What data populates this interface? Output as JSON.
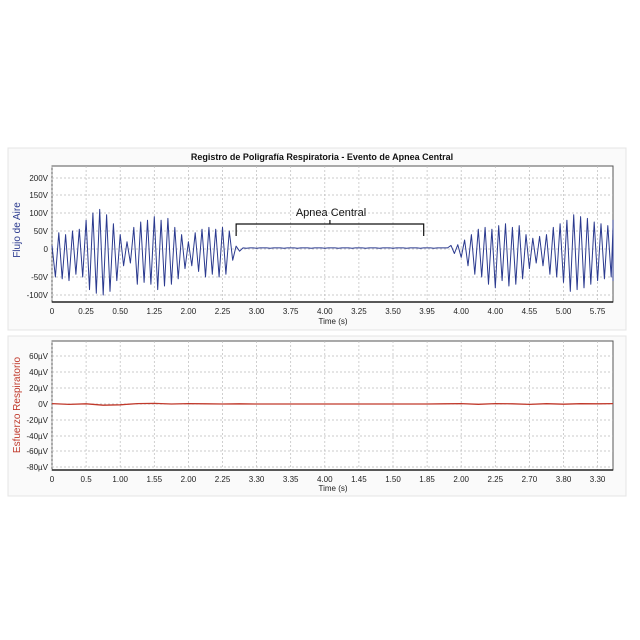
{
  "chart_data": [
    {
      "type": "line",
      "title": "Registro de Poligrafía Respiratoria - Evento de Apnea Central",
      "xlabel": "Time (s)",
      "ylabel": "Flujo de Aire",
      "x_tick_labels": [
        "0",
        "0.25",
        "0.50",
        "1.25",
        "2.00",
        "2.25",
        "3.00",
        "3.75",
        "4.00",
        "3.25",
        "3.50",
        "3.95",
        "4.00",
        "4.00",
        "4.55",
        "5.00",
        "5.75"
      ],
      "y_tick_labels": [
        "200V",
        "150V",
        "100V",
        "50V",
        "0",
        "-50V",
        "-100V"
      ],
      "y_tick_values": [
        200,
        150,
        100,
        50,
        0,
        -50,
        -100
      ],
      "grid": true,
      "color": "#2b3a8f",
      "annotation": "Apnea Central",
      "annotation_span_ticks": [
        5.4,
        10.9
      ],
      "x_step_ticks": 0.1,
      "values": [
        10,
        -50,
        45,
        -55,
        40,
        -60,
        50,
        -45,
        55,
        -50,
        80,
        -85,
        100,
        -95,
        110,
        -100,
        95,
        -90,
        70,
        -60,
        40,
        -30,
        20,
        -25,
        60,
        -70,
        75,
        -65,
        80,
        -70,
        90,
        -85,
        80,
        -75,
        85,
        -70,
        60,
        -55,
        40,
        -35,
        20,
        -30,
        45,
        -40,
        55,
        -50,
        60,
        -45,
        55,
        -50,
        60,
        -45,
        50,
        -20,
        8,
        -4,
        3,
        2,
        3,
        3,
        2,
        3,
        3,
        3,
        2,
        3,
        3,
        3,
        2,
        3,
        3,
        3,
        2,
        3,
        3,
        3,
        2,
        3,
        3,
        3,
        2,
        3,
        3,
        3,
        2,
        3,
        3,
        3,
        2,
        3,
        3,
        3,
        2,
        3,
        3,
        3,
        2,
        3,
        3,
        3,
        2,
        3,
        3,
        3,
        2,
        3,
        3,
        3,
        2,
        3,
        3,
        3,
        2,
        3,
        3,
        3,
        3,
        10,
        -8,
        12,
        -15,
        25,
        -30,
        40,
        -45,
        55,
        -50,
        60,
        -70,
        55,
        -80,
        65,
        -60,
        70,
        -75,
        60,
        -70,
        65,
        -55,
        40,
        -35,
        30,
        -25,
        35,
        -30,
        40,
        -45,
        60,
        -50,
        70,
        -65,
        80,
        -90,
        95,
        -85,
        90,
        -80,
        85,
        -70,
        75,
        -60,
        70,
        -55,
        65,
        -50,
        60,
        -55,
        70,
        -60,
        80,
        -40
      ]
    },
    {
      "type": "line",
      "xlabel": "Time (s)",
      "ylabel": "Esfuerzo Respiratorio",
      "x_tick_labels": [
        "0",
        "0.5",
        "1.00",
        "1.55",
        "2.00",
        "2.25",
        "3.30",
        "3.35",
        "4.00",
        "1.45",
        "1.50",
        "1.85",
        "2.00",
        "2.25",
        "2.70",
        "3.80",
        "3.30"
      ],
      "y_tick_labels": [
        "60µV",
        "40µV",
        "20µV",
        "0V",
        "-20µV",
        "-40µV",
        "-60µV",
        "-80µV"
      ],
      "y_tick_values": [
        60,
        40,
        20,
        0,
        -20,
        -40,
        -60,
        -80
      ],
      "grid": true,
      "color": "#c0392b",
      "x_step_ticks": 0.5,
      "values": [
        0.5,
        -0.5,
        0.3,
        -1.5,
        -1,
        0.5,
        0.8,
        0,
        0.5,
        0.2,
        0,
        0.3,
        0,
        0,
        0,
        0,
        0,
        0,
        0,
        0,
        0,
        0,
        0,
        0.3,
        0.5,
        -0.4,
        0.5,
        0.3,
        -0.5,
        0.4,
        -0.3,
        0.4,
        0.3,
        0.5
      ]
    }
  ]
}
